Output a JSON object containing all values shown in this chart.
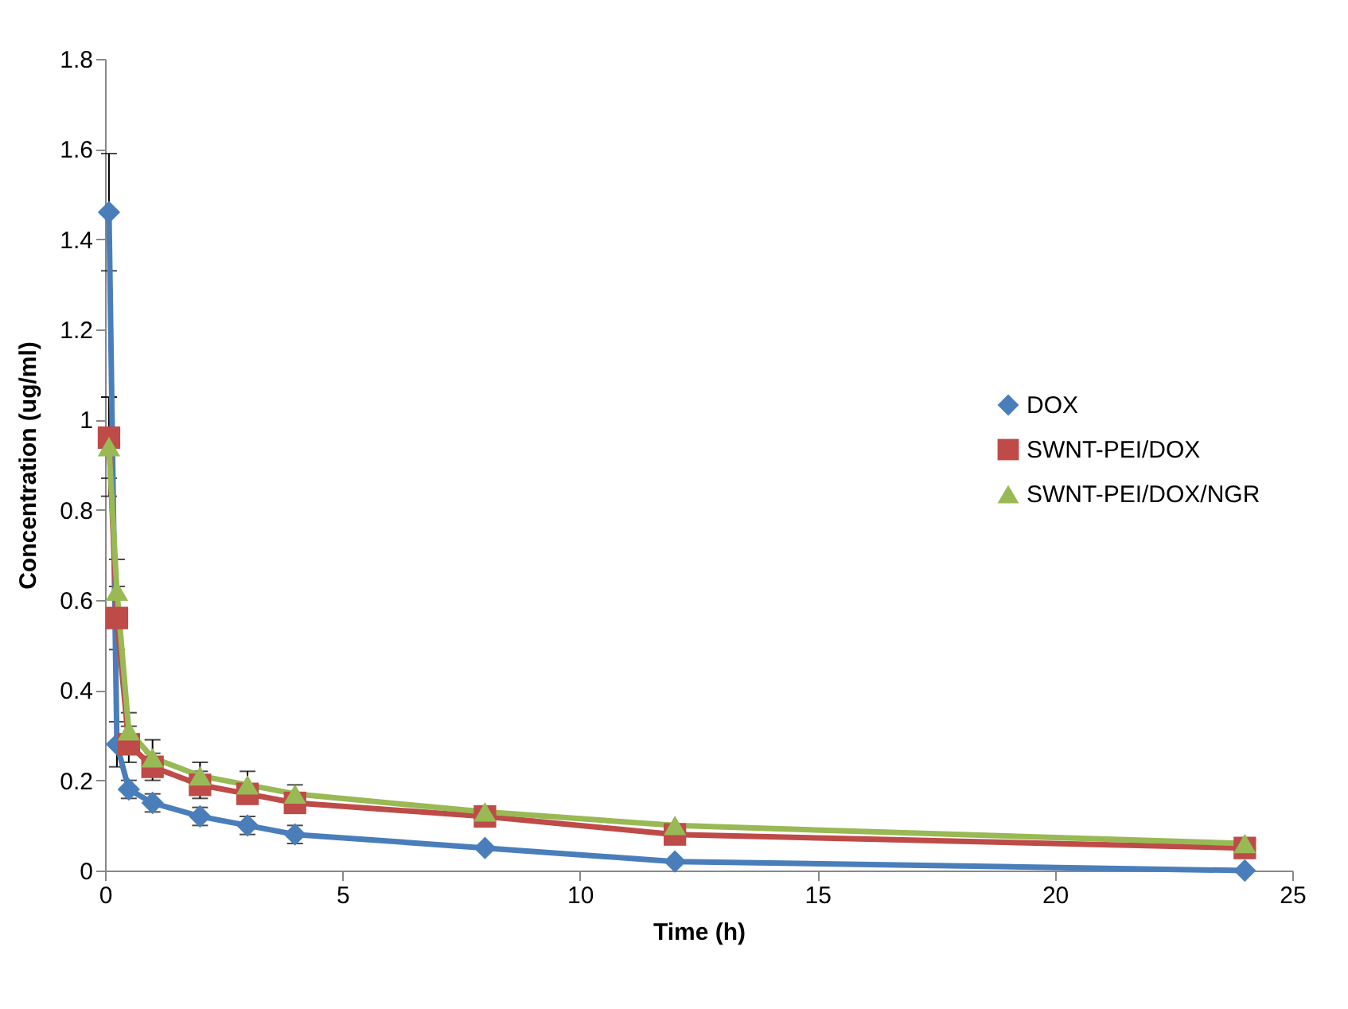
{
  "chart_data": {
    "type": "line",
    "xlabel": "Time (h)",
    "ylabel": "Concentration (ug/ml)",
    "x": [
      0.083,
      0.25,
      0.5,
      1,
      2,
      3,
      4,
      8,
      12,
      24
    ],
    "series": [
      {
        "name": "DOX",
        "color": "#4a7ebb",
        "marker": "diamond",
        "values": [
          1.46,
          0.28,
          0.18,
          0.15,
          0.12,
          0.1,
          0.08,
          0.05,
          0.02,
          0.0
        ],
        "errors": [
          0.13,
          0.05,
          0.02,
          0.02,
          0.02,
          0.02,
          0.02,
          null,
          null,
          null
        ]
      },
      {
        "name": "SWNT-PEI/DOX",
        "color": "#be4b48",
        "marker": "square",
        "values": [
          0.96,
          0.56,
          0.28,
          0.23,
          0.19,
          0.17,
          0.15,
          0.12,
          0.08,
          0.05
        ],
        "errors": [
          0.09,
          0.07,
          0.04,
          0.03,
          0.03,
          null,
          null,
          null,
          null,
          null
        ]
      },
      {
        "name": "SWNT-PEI/DOX/NGR",
        "color": "#98b954",
        "marker": "triangle",
        "values": [
          0.94,
          0.62,
          0.31,
          0.25,
          0.21,
          0.19,
          0.17,
          0.13,
          0.1,
          0.06
        ],
        "errors": [
          0.11,
          0.07,
          0.04,
          0.04,
          0.03,
          0.03,
          0.02,
          null,
          null,
          null
        ]
      }
    ],
    "xlim": [
      0,
      25
    ],
    "xticks": [
      0,
      5,
      10,
      15,
      20,
      25
    ],
    "ylim": [
      0,
      1.8
    ],
    "yticks": [
      0,
      0.2,
      0.4,
      0.6,
      0.8,
      1,
      1.2,
      1.4,
      1.6,
      1.8
    ],
    "grid": false,
    "legend": "right",
    "line_style": "solid"
  }
}
